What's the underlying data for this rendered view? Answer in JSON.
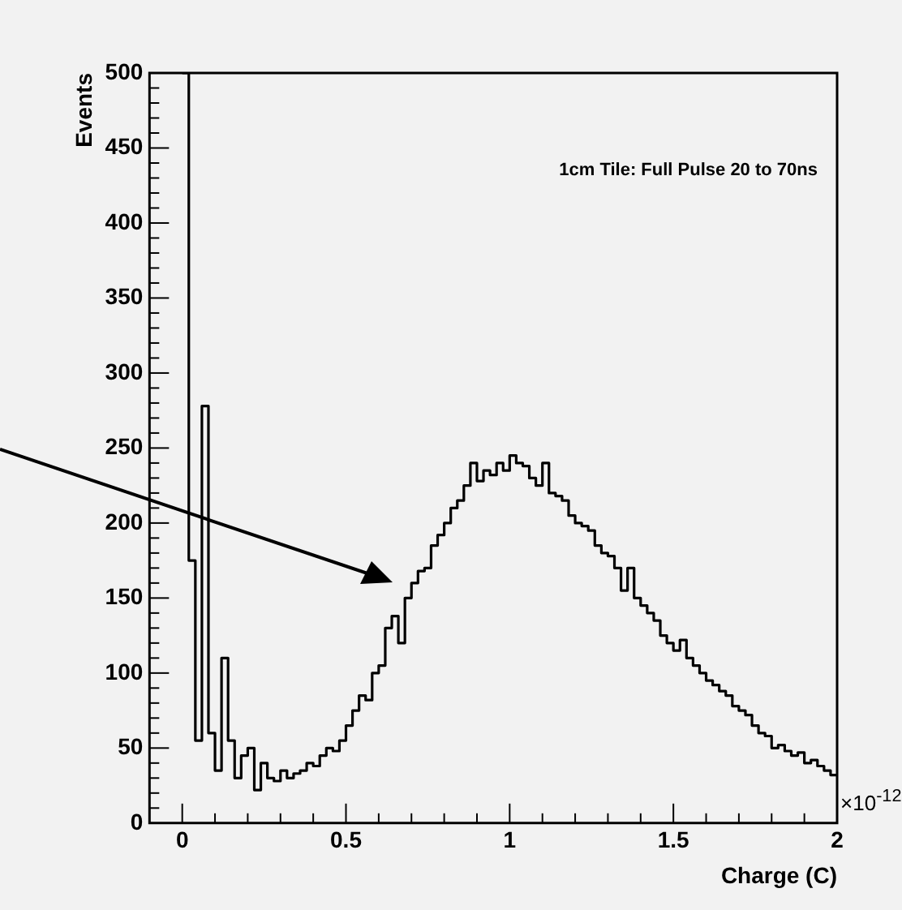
{
  "chart_data": {
    "type": "histogram",
    "xlabel": "Charge (C)",
    "ylabel": "Events",
    "annotations": [
      "1cm Tile: Full Pulse 20 to 70ns",
      "×10$^{-12}$"
    ],
    "bins": [
      0,
      0.02,
      0.04,
      0.06,
      0.08,
      0.1,
      0.12,
      0.14,
      0.16,
      0.18,
      0.2,
      0.22,
      0.24,
      0.26,
      0.28,
      0.3,
      0.32,
      0.34,
      0.36,
      0.38,
      0.4,
      0.42,
      0.44,
      0.46,
      0.48,
      0.5,
      0.52,
      0.54,
      0.56,
      0.58,
      0.6,
      0.62,
      0.64,
      0.66,
      0.68,
      0.7,
      0.72,
      0.74,
      0.76,
      0.78,
      0.8,
      0.82,
      0.84,
      0.86,
      0.88,
      0.9,
      0.92,
      0.94,
      0.96,
      0.98,
      1,
      1.02,
      1.04,
      1.06,
      1.08,
      1.1,
      1.12,
      1.14,
      1.16,
      1.18,
      1.2,
      1.22,
      1.24,
      1.26,
      1.28,
      1.3,
      1.32,
      1.34,
      1.36,
      1.38,
      1.4,
      1.42,
      1.44,
      1.46,
      1.48,
      1.5,
      1.52,
      1.54,
      1.56,
      1.58,
      1.6,
      1.62,
      1.64,
      1.66,
      1.68,
      1.7,
      1.72,
      1.74,
      1.76,
      1.78,
      1.8,
      1.82,
      1.84,
      1.86,
      1.88,
      1.9,
      1.92,
      1.94,
      1.96,
      1.98,
      2
    ],
    "values": [
      500,
      175,
      55,
      278,
      60,
      35,
      110,
      55,
      30,
      45,
      50,
      22,
      40,
      30,
      28,
      35,
      30,
      33,
      35,
      40,
      38,
      45,
      50,
      48,
      55,
      65,
      75,
      85,
      82,
      100,
      105,
      130,
      138,
      120,
      150,
      160,
      168,
      170,
      185,
      192,
      200,
      210,
      215,
      225,
      240,
      228,
      235,
      232,
      240,
      235,
      245,
      240,
      238,
      230,
      225,
      240,
      220,
      218,
      215,
      205,
      200,
      198,
      195,
      185,
      180,
      178,
      170,
      155,
      170,
      150,
      145,
      140,
      135,
      125,
      120,
      115,
      122,
      110,
      105,
      100,
      95,
      92,
      88,
      85,
      78,
      75,
      72,
      65,
      60,
      58,
      50,
      52,
      48,
      45,
      47,
      40,
      42,
      38,
      35,
      32
    ],
    "color": "#000000",
    "xlim": [
      -0.1,
      2
    ],
    "xticks": [
      0,
      0.5,
      1,
      1.5,
      2
    ],
    "ylim": [
      0,
      500
    ],
    "yticks": [
      0,
      50,
      100,
      150,
      200,
      250,
      300,
      350,
      400,
      450,
      500
    ]
  }
}
